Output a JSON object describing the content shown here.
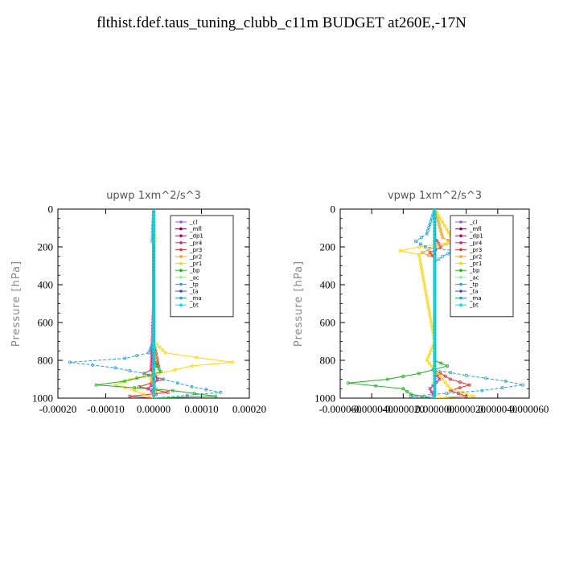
{
  "title": "flthist.fdef.taus_tuning_clubb_c11m  BUDGET at260E,-17N",
  "chart_data": [
    {
      "type": "line",
      "title": "upwp   1xm^2/s^3",
      "ylabel": "Pressure [hPa]",
      "ylim": [
        1000,
        0
      ],
      "xlim": [
        -0.0002,
        0.0002
      ],
      "xticks": [
        -0.0002,
        -0.0001,
        0.0,
        0.0001,
        0.0002
      ],
      "xtick_labels": [
        "-0.00020",
        "-0.00010",
        "0.00000",
        "0.00010",
        "0.00020"
      ],
      "yticks": [
        0,
        200,
        400,
        600,
        800,
        1000
      ],
      "ytick_labels": [
        "0",
        "200",
        "400",
        "600",
        "800",
        "1000"
      ],
      "legend_position": "top-right",
      "series": [
        {
          "name": "_cl",
          "color": "#9b59d0",
          "y": [
            0,
            100,
            200,
            300,
            400,
            500,
            600,
            700,
            800,
            900,
            1000
          ],
          "x": [
            0,
            0,
            0,
            0,
            0,
            0,
            0,
            0,
            0,
            0,
            0
          ]
        },
        {
          "name": "_mfl",
          "color": "#800040",
          "y": [
            0,
            100,
            200,
            300,
            400,
            500,
            600,
            700,
            800,
            900,
            1000
          ],
          "x": [
            0,
            0,
            0,
            0,
            0,
            0,
            0,
            0,
            0,
            0,
            0
          ]
        },
        {
          "name": "_dp1",
          "color": "#c0006a",
          "y": [
            0,
            100,
            200,
            300,
            400,
            500,
            600,
            700,
            800,
            900,
            1000
          ],
          "x": [
            0,
            0,
            0,
            0,
            0,
            0,
            0,
            0,
            0,
            0,
            0
          ]
        },
        {
          "name": "_pr4",
          "color": "#d0208a",
          "y": [
            0,
            500,
            850,
            900,
            950,
            980,
            1000
          ],
          "x": [
            0,
            0,
            -5e-06,
            8e-06,
            -1.2e-05,
            5e-06,
            0
          ]
        },
        {
          "name": "_pr3",
          "color": "#e03030",
          "y": [
            0,
            700,
            830,
            870,
            900,
            940,
            970,
            990,
            1000
          ],
          "x": [
            0,
            0,
            1e-05,
            -2e-05,
            2e-05,
            -3e-05,
            3e-05,
            -5e-05,
            0
          ]
        },
        {
          "name": "_pr2",
          "color": "#f0a020",
          "y": [
            0,
            700,
            800,
            900,
            950,
            1000
          ],
          "x": [
            0,
            0,
            5e-06,
            -5e-06,
            5e-06,
            0
          ]
        },
        {
          "name": "_pr1",
          "color": "#ffd700",
          "y": [
            0,
            170,
            190,
            700,
            760,
            785,
            810,
            830,
            870,
            900,
            930,
            960,
            1000
          ],
          "x": [
            0,
            3e-06,
            0,
            0,
            2.5e-05,
            9e-05,
            0.000165,
            8e-05,
            1e-05,
            -5e-05,
            -8e-05,
            -4e-05,
            0
          ]
        },
        {
          "name": "_bp",
          "color": "#20b020",
          "y": [
            0,
            800,
            860,
            880,
            910,
            930,
            960,
            990,
            1000
          ],
          "x": [
            0,
            0,
            1.5e-05,
            -1e-05,
            -6e-05,
            -0.00012,
            4e-05,
            0.00013,
            0
          ]
        },
        {
          "name": "_ac",
          "color": "#90ee90",
          "y": [
            0,
            1000
          ],
          "x": [
            0,
            0
          ]
        },
        {
          "name": "_tp",
          "color": "#2ca0d8",
          "y": [
            0,
            170,
            190,
            700,
            760,
            790,
            810,
            840,
            870,
            900,
            940,
            970,
            1000
          ],
          "x": [
            0,
            -3e-06,
            0,
            0,
            -1e-05,
            -6e-05,
            -0.000175,
            -8e-05,
            -2e-05,
            2e-05,
            8e-05,
            0.00014,
            0
          ]
        },
        {
          "name": "_ta",
          "color": "#3050c0",
          "y": [
            0,
            1000
          ],
          "x": [
            0,
            0
          ]
        },
        {
          "name": "_ma",
          "color": "#20a0d0",
          "y": [
            0,
            1000
          ],
          "x": [
            0,
            0
          ]
        },
        {
          "name": "_bt",
          "color": "#00e0e0",
          "y": [
            0,
            1000
          ],
          "x": [
            0,
            0
          ]
        }
      ]
    },
    {
      "type": "line",
      "title": "vpwp   1xm^2/s^3",
      "ylabel": "Pressure [hPa]",
      "ylim": [
        1000,
        0
      ],
      "xlim": [
        -6e-05,
        6e-05
      ],
      "xticks": [
        -6e-05,
        -4e-05,
        -2e-05,
        0.0,
        2e-05,
        4e-05,
        6e-05
      ],
      "xtick_labels": [
        "-0.000060",
        "-0.000040",
        "-0.000020",
        "0.000000",
        "0.000020",
        "0.000040",
        "0.000060"
      ],
      "yticks": [
        0,
        200,
        400,
        600,
        800,
        1000
      ],
      "ytick_labels": [
        "0",
        "200",
        "400",
        "600",
        "800",
        "1000"
      ],
      "legend_position": "top-right",
      "series": [
        {
          "name": "_cl",
          "color": "#9b59d0",
          "y": [
            0,
            100,
            200,
            300,
            400,
            500,
            600,
            700,
            800,
            900,
            1000
          ],
          "x": [
            0,
            0,
            0,
            0,
            0,
            0,
            0,
            0,
            0,
            0,
            0
          ]
        },
        {
          "name": "_mfl",
          "color": "#800040",
          "y": [
            0,
            100,
            200,
            300,
            400,
            500,
            600,
            700,
            800,
            900,
            1000
          ],
          "x": [
            0,
            0,
            0,
            0,
            0,
            0,
            0,
            0,
            0,
            0,
            0
          ]
        },
        {
          "name": "_dp1",
          "color": "#c0006a",
          "y": [
            0,
            100,
            200,
            300,
            400,
            500,
            600,
            700,
            800,
            900,
            1000
          ],
          "x": [
            0,
            0,
            0,
            0,
            0,
            0,
            0,
            0,
            0,
            0,
            0
          ]
        },
        {
          "name": "_pr4",
          "color": "#d0208a",
          "y": [
            0,
            850,
            900,
            950,
            1000
          ],
          "x": [
            0,
            0,
            3e-06,
            -3e-06,
            0
          ]
        },
        {
          "name": "_pr3",
          "color": "#e03030",
          "y": [
            0,
            150,
            200,
            230,
            260,
            850,
            900,
            930,
            960,
            990,
            1000
          ],
          "x": [
            0,
            0,
            4e-06,
            -3e-06,
            0,
            0,
            1e-05,
            2.2e-05,
            1e-05,
            2e-05,
            0
          ]
        },
        {
          "name": "_pr2",
          "color": "#f0a020",
          "y": [
            0,
            150,
            180,
            200,
            230,
            260,
            1000
          ],
          "x": [
            0,
            5e-06,
            1.2e-05,
            0,
            -8e-06,
            0,
            0
          ]
        },
        {
          "name": "_pr1",
          "color": "#ffd700",
          "y": [
            0,
            140,
            160,
            180,
            200,
            220,
            240,
            700,
            800,
            900,
            950,
            990,
            1000
          ],
          "x": [
            0,
            1e-05,
            1.5e-05,
            8e-06,
            -1e-05,
            -2.2e-05,
            -1e-05,
            0,
            -5e-06,
            5e-06,
            1e-05,
            2.5e-05,
            0
          ]
        },
        {
          "name": "_bp",
          "color": "#20b020",
          "y": [
            0,
            800,
            830,
            870,
            900,
            920,
            950,
            980,
            1000
          ],
          "x": [
            0,
            0,
            8e-06,
            -1e-05,
            -3e-05,
            -5.5e-05,
            -2e-05,
            -1.5e-05,
            0
          ]
        },
        {
          "name": "_ac",
          "color": "#90ee90",
          "y": [
            0,
            1000
          ],
          "x": [
            0,
            0
          ]
        },
        {
          "name": "_tp",
          "color": "#2ca0d8",
          "y": [
            0,
            130,
            170,
            200,
            220,
            250,
            280,
            850,
            880,
            910,
            930,
            960,
            990,
            1000
          ],
          "x": [
            0,
            -5e-06,
            -1.2e-05,
            -6e-06,
            1.2e-05,
            5e-06,
            0,
            0,
            2e-05,
            4.5e-05,
            5.6e-05,
            3e-05,
            -1.5e-05,
            0
          ]
        },
        {
          "name": "_ta",
          "color": "#3050c0",
          "y": [
            0,
            1000
          ],
          "x": [
            0,
            0
          ]
        },
        {
          "name": "_ma",
          "color": "#20a0d0",
          "y": [
            0,
            1000
          ],
          "x": [
            0,
            0
          ]
        },
        {
          "name": "_bt",
          "color": "#00e0e0",
          "y": [
            0,
            1000
          ],
          "x": [
            0,
            0
          ]
        }
      ]
    }
  ]
}
